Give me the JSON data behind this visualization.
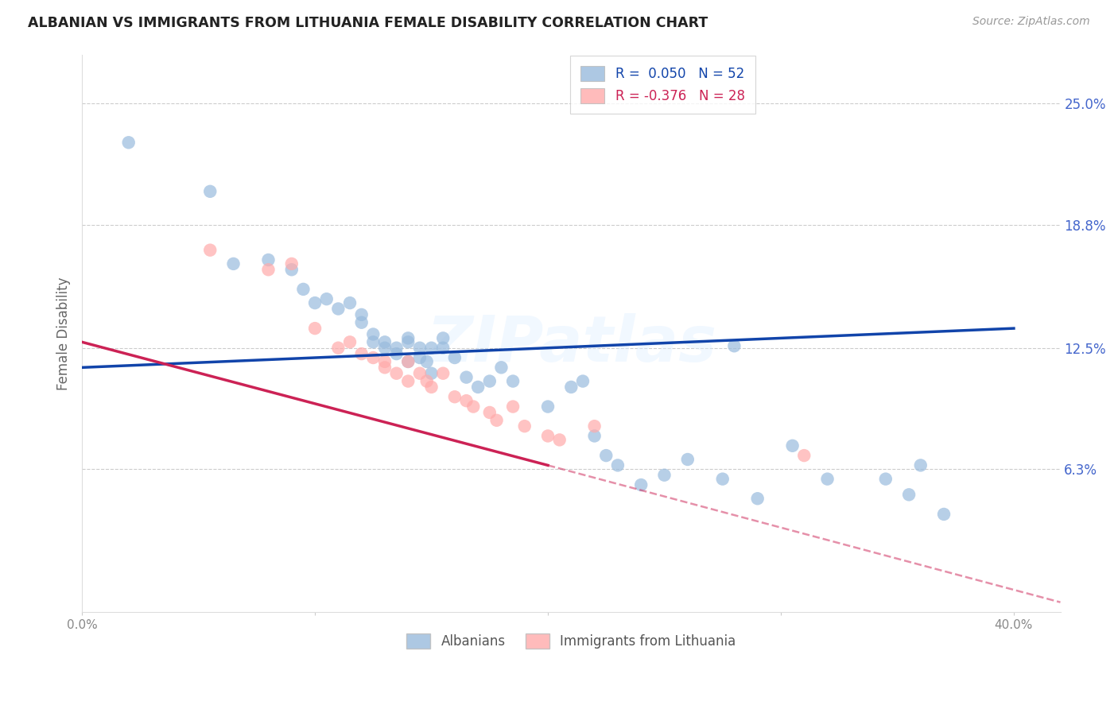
{
  "title": "ALBANIAN VS IMMIGRANTS FROM LITHUANIA FEMALE DISABILITY CORRELATION CHART",
  "source": "Source: ZipAtlas.com",
  "ylabel": "Female Disability",
  "yticks": [
    0.0,
    0.063,
    0.125,
    0.188,
    0.25
  ],
  "ytick_labels": [
    "",
    "6.3%",
    "12.5%",
    "18.8%",
    "25.0%"
  ],
  "xtick_labels": [
    "0.0%",
    "",
    "",
    "",
    "40.0%"
  ],
  "xlim": [
    0.0,
    0.42
  ],
  "ylim": [
    -0.01,
    0.275
  ],
  "watermark": "ZIPatlas",
  "legend_r1": "0.050",
  "legend_n1": "52",
  "legend_r2": "-0.376",
  "legend_n2": "28",
  "legend_label1": "Albanians",
  "legend_label2": "Immigrants from Lithuania",
  "blue_color": "#99bbdd",
  "pink_color": "#ffaaaa",
  "trend_blue": "#1144aa",
  "trend_pink": "#cc2255",
  "blue_trend_start_x": 0.0,
  "blue_trend_start_y": 0.115,
  "blue_trend_end_x": 0.4,
  "blue_trend_end_y": 0.135,
  "pink_trend_start_x": 0.0,
  "pink_trend_start_y": 0.128,
  "pink_trend_solid_end_x": 0.2,
  "pink_trend_solid_end_y": 0.065,
  "pink_trend_dash_end_x": 0.42,
  "pink_trend_dash_end_y": -0.005,
  "albanians_x": [
    0.02,
    0.055,
    0.065,
    0.08,
    0.09,
    0.095,
    0.1,
    0.105,
    0.11,
    0.115,
    0.12,
    0.12,
    0.125,
    0.125,
    0.13,
    0.13,
    0.135,
    0.135,
    0.14,
    0.14,
    0.14,
    0.145,
    0.145,
    0.148,
    0.15,
    0.15,
    0.155,
    0.155,
    0.16,
    0.165,
    0.17,
    0.175,
    0.18,
    0.185,
    0.2,
    0.21,
    0.215,
    0.22,
    0.225,
    0.23,
    0.24,
    0.25,
    0.26,
    0.275,
    0.29,
    0.305,
    0.32,
    0.345,
    0.355,
    0.36,
    0.37,
    0.28
  ],
  "albanians_y": [
    0.23,
    0.205,
    0.168,
    0.17,
    0.165,
    0.155,
    0.148,
    0.15,
    0.145,
    0.148,
    0.142,
    0.138,
    0.132,
    0.128,
    0.128,
    0.125,
    0.125,
    0.122,
    0.13,
    0.128,
    0.118,
    0.125,
    0.12,
    0.118,
    0.125,
    0.112,
    0.13,
    0.125,
    0.12,
    0.11,
    0.105,
    0.108,
    0.115,
    0.108,
    0.095,
    0.105,
    0.108,
    0.08,
    0.07,
    0.065,
    0.055,
    0.06,
    0.068,
    0.058,
    0.048,
    0.075,
    0.058,
    0.058,
    0.05,
    0.065,
    0.04,
    0.126
  ],
  "lithuania_x": [
    0.055,
    0.08,
    0.09,
    0.1,
    0.11,
    0.115,
    0.12,
    0.125,
    0.13,
    0.13,
    0.135,
    0.14,
    0.14,
    0.145,
    0.148,
    0.15,
    0.155,
    0.16,
    0.165,
    0.168,
    0.175,
    0.178,
    0.185,
    0.19,
    0.2,
    0.205,
    0.22,
    0.31
  ],
  "lithuania_y": [
    0.175,
    0.165,
    0.168,
    0.135,
    0.125,
    0.128,
    0.122,
    0.12,
    0.118,
    0.115,
    0.112,
    0.118,
    0.108,
    0.112,
    0.108,
    0.105,
    0.112,
    0.1,
    0.098,
    0.095,
    0.092,
    0.088,
    0.095,
    0.085,
    0.08,
    0.078,
    0.085,
    0.07
  ]
}
